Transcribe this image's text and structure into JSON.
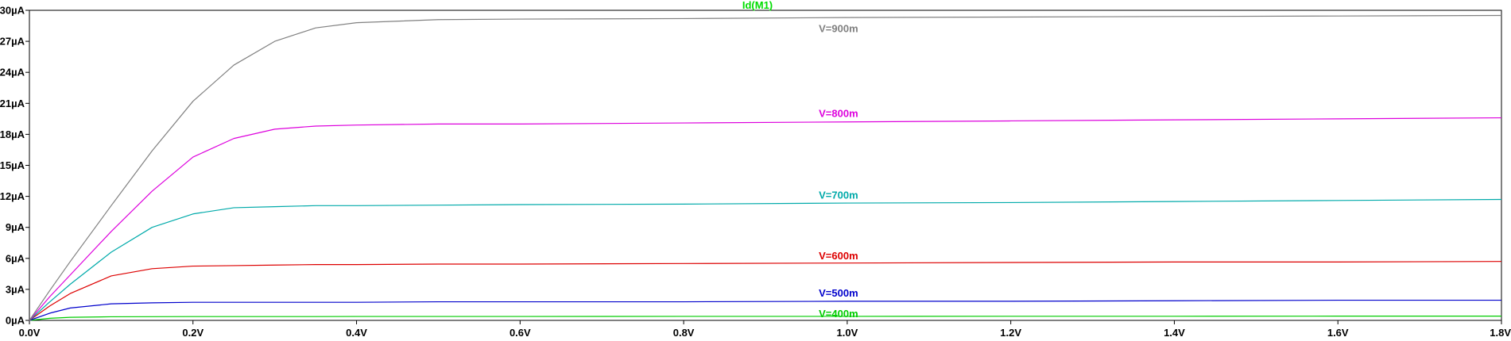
{
  "chart_data": {
    "type": "line",
    "title": "Id(M1)",
    "title_color": "#00dd00",
    "xlabel": "",
    "ylabel": "",
    "xlim": [
      0,
      1.8
    ],
    "ylim": [
      0,
      30
    ],
    "grid": false,
    "x_ticks": [
      {
        "value": 0.0,
        "label": "0.0V"
      },
      {
        "value": 0.2,
        "label": "0.2V"
      },
      {
        "value": 0.4,
        "label": "0.4V"
      },
      {
        "value": 0.6,
        "label": "0.6V"
      },
      {
        "value": 0.8,
        "label": "0.8V"
      },
      {
        "value": 1.0,
        "label": "1.0V"
      },
      {
        "value": 1.2,
        "label": "1.2V"
      },
      {
        "value": 1.4,
        "label": "1.4V"
      },
      {
        "value": 1.6,
        "label": "1.6V"
      },
      {
        "value": 1.8,
        "label": "1.8V"
      }
    ],
    "y_ticks": [
      {
        "value": 0,
        "label": "0µA"
      },
      {
        "value": 3,
        "label": "3µA"
      },
      {
        "value": 6,
        "label": "6µA"
      },
      {
        "value": 9,
        "label": "9µA"
      },
      {
        "value": 12,
        "label": "12µA"
      },
      {
        "value": 15,
        "label": "15µA"
      },
      {
        "value": 18,
        "label": "18µA"
      },
      {
        "value": 21,
        "label": "21µA"
      },
      {
        "value": 24,
        "label": "24µA"
      },
      {
        "value": 27,
        "label": "27µA"
      },
      {
        "value": 30,
        "label": "30µA"
      }
    ],
    "x": [
      0,
      0.025,
      0.05,
      0.1,
      0.15,
      0.2,
      0.25,
      0.3,
      0.35,
      0.4,
      0.5,
      0.6,
      0.8,
      1.0,
      1.2,
      1.4,
      1.6,
      1.8
    ],
    "series": [
      {
        "name": "V=400m",
        "color": "#00cc00",
        "values": [
          0,
          0.2,
          0.3,
          0.35,
          0.36,
          0.37,
          0.37,
          0.37,
          0.37,
          0.38,
          0.38,
          0.38,
          0.39,
          0.39,
          0.4,
          0.4,
          0.41,
          0.41
        ]
      },
      {
        "name": "V=500m",
        "color": "#0000cc",
        "values": [
          0,
          0.7,
          1.2,
          1.6,
          1.7,
          1.75,
          1.75,
          1.75,
          1.75,
          1.75,
          1.8,
          1.8,
          1.8,
          1.85,
          1.85,
          1.9,
          1.95,
          1.95
        ]
      },
      {
        "name": "V=600m",
        "color": "#dd0000",
        "values": [
          0,
          1.4,
          2.6,
          4.3,
          5.0,
          5.25,
          5.3,
          5.35,
          5.4,
          5.4,
          5.45,
          5.45,
          5.5,
          5.55,
          5.6,
          5.65,
          5.65,
          5.7
        ]
      },
      {
        "name": "V=700m",
        "color": "#00aaaa",
        "values": [
          0,
          1.8,
          3.5,
          6.6,
          9.0,
          10.3,
          10.9,
          11.0,
          11.1,
          11.1,
          11.15,
          11.2,
          11.25,
          11.35,
          11.4,
          11.5,
          11.6,
          11.7
        ]
      },
      {
        "name": "V=800m",
        "color": "#dd00dd",
        "values": [
          0,
          2.3,
          4.4,
          8.6,
          12.5,
          15.8,
          17.6,
          18.5,
          18.8,
          18.9,
          19.0,
          19.0,
          19.1,
          19.2,
          19.3,
          19.4,
          19.5,
          19.6
        ]
      },
      {
        "name": "V=900m",
        "color": "#808080",
        "values": [
          0,
          2.9,
          5.7,
          11.1,
          16.4,
          21.2,
          24.7,
          27.0,
          28.3,
          28.8,
          29.1,
          29.15,
          29.2,
          29.3,
          29.35,
          29.4,
          29.45,
          29.5
        ]
      }
    ],
    "series_labels": [
      {
        "series": "V=900m",
        "x": 1.0,
        "y": 28.2
      },
      {
        "series": "V=800m",
        "x": 1.0,
        "y": 20.0
      },
      {
        "series": "V=700m",
        "x": 1.0,
        "y": 12.1
      },
      {
        "series": "V=600m",
        "x": 1.0,
        "y": 6.2
      },
      {
        "series": "V=500m",
        "x": 1.0,
        "y": 2.6
      },
      {
        "series": "V=400m",
        "x": 1.0,
        "y": 0.6
      }
    ]
  }
}
